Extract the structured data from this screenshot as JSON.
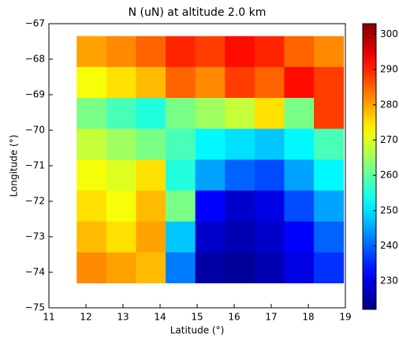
{
  "chart_data": {
    "type": "heatmap",
    "title": "N (uN) at altitude 2.0 km",
    "xlabel": "Latitude (°)",
    "ylabel": "Longitude (°)",
    "xlim": [
      11,
      19
    ],
    "xticks": [
      11,
      12,
      13,
      14,
      15,
      16,
      17,
      18,
      19
    ],
    "ylim": [
      -75,
      -67
    ],
    "yticks": [
      {
        "value": -67,
        "label": "−67"
      },
      {
        "value": -68,
        "label": "−68"
      },
      {
        "value": -69,
        "label": "−69"
      },
      {
        "value": -70,
        "label": "−70"
      },
      {
        "value": -71,
        "label": "−71"
      },
      {
        "value": -72,
        "label": "−72"
      },
      {
        "value": -73,
        "label": "−73"
      },
      {
        "value": -74,
        "label": "−74"
      },
      {
        "value": -75,
        "label": "−75"
      }
    ],
    "xbins": [
      11.75,
      12.55,
      13.35,
      14.15,
      14.95,
      15.75,
      16.55,
      17.35,
      18.15,
      18.95
    ],
    "ybins": [
      -67.35,
      -68.22,
      -69.09,
      -69.96,
      -70.83,
      -71.7,
      -72.57,
      -73.44,
      -74.3
    ],
    "z": [
      [
        280,
        282,
        285,
        290,
        288,
        292,
        290,
        285,
        282
      ],
      [
        272,
        275,
        278,
        285,
        282,
        288,
        285,
        292,
        288
      ],
      [
        262,
        258,
        255,
        262,
        265,
        268,
        275,
        262,
        288
      ],
      [
        268,
        265,
        262,
        258,
        252,
        250,
        248,
        252,
        258
      ],
      [
        272,
        270,
        275,
        255,
        245,
        240,
        238,
        245,
        252
      ],
      [
        275,
        272,
        278,
        262,
        232,
        228,
        230,
        238,
        245
      ],
      [
        278,
        275,
        280,
        248,
        228,
        226,
        228,
        232,
        240
      ],
      [
        282,
        280,
        278,
        242,
        225,
        224,
        226,
        230,
        236
      ]
    ],
    "colormap": "jet",
    "clim": [
      222,
      303
    ],
    "cticks": [
      230,
      240,
      250,
      260,
      270,
      280,
      290,
      300
    ]
  }
}
